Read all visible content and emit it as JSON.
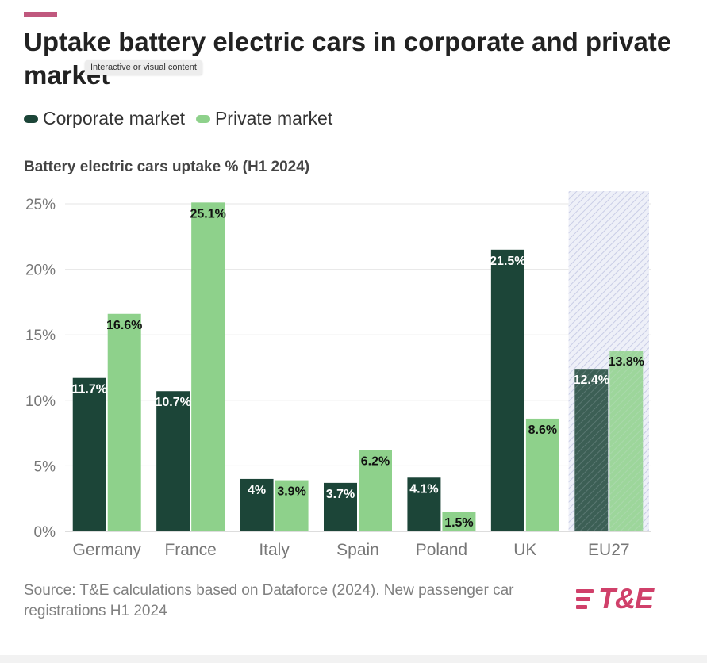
{
  "title": "Uptake battery electric cars in corporate and private market",
  "tooltip": "Interactive or visual content",
  "legend": [
    {
      "label": "Corporate market",
      "color": "#1c4538"
    },
    {
      "label": "Private market",
      "color": "#8ed18b"
    }
  ],
  "subtitle": "Battery electric cars uptake % (H1 2024)",
  "source": "Source: T&E calculations based on Dataforce (2024). New passenger car registrations H1 2024",
  "logo": {
    "text": "T&E",
    "color": "#d0406a"
  },
  "accent_color": "#c0587e",
  "chart_data": {
    "type": "bar",
    "categories": [
      "Germany",
      "France",
      "Italy",
      "Spain",
      "Poland",
      "UK",
      "EU27"
    ],
    "series": [
      {
        "name": "Corporate market",
        "color": "#1c4538",
        "values": [
          11.7,
          10.7,
          4,
          3.7,
          4.1,
          21.5,
          12.4
        ],
        "labels": [
          "11.7%",
          "10.7%",
          "4%",
          "3.7%",
          "4.1%",
          "21.5%",
          "12.4%"
        ]
      },
      {
        "name": "Private market",
        "color": "#8ed18b",
        "values": [
          16.6,
          25.1,
          3.9,
          6.2,
          1.5,
          8.6,
          13.8
        ],
        "labels": [
          "16.6%",
          "25.1%",
          "3.9%",
          "6.2%",
          "1.5%",
          "8.6%",
          "13.8%"
        ]
      }
    ],
    "highlighted_category": "EU27",
    "ylim": [
      0,
      25
    ],
    "yticks": [
      "0%",
      "5%",
      "10%",
      "15%",
      "20%",
      "25%"
    ],
    "ytick_values": [
      0,
      5,
      10,
      15,
      20,
      25
    ],
    "grid": true
  }
}
